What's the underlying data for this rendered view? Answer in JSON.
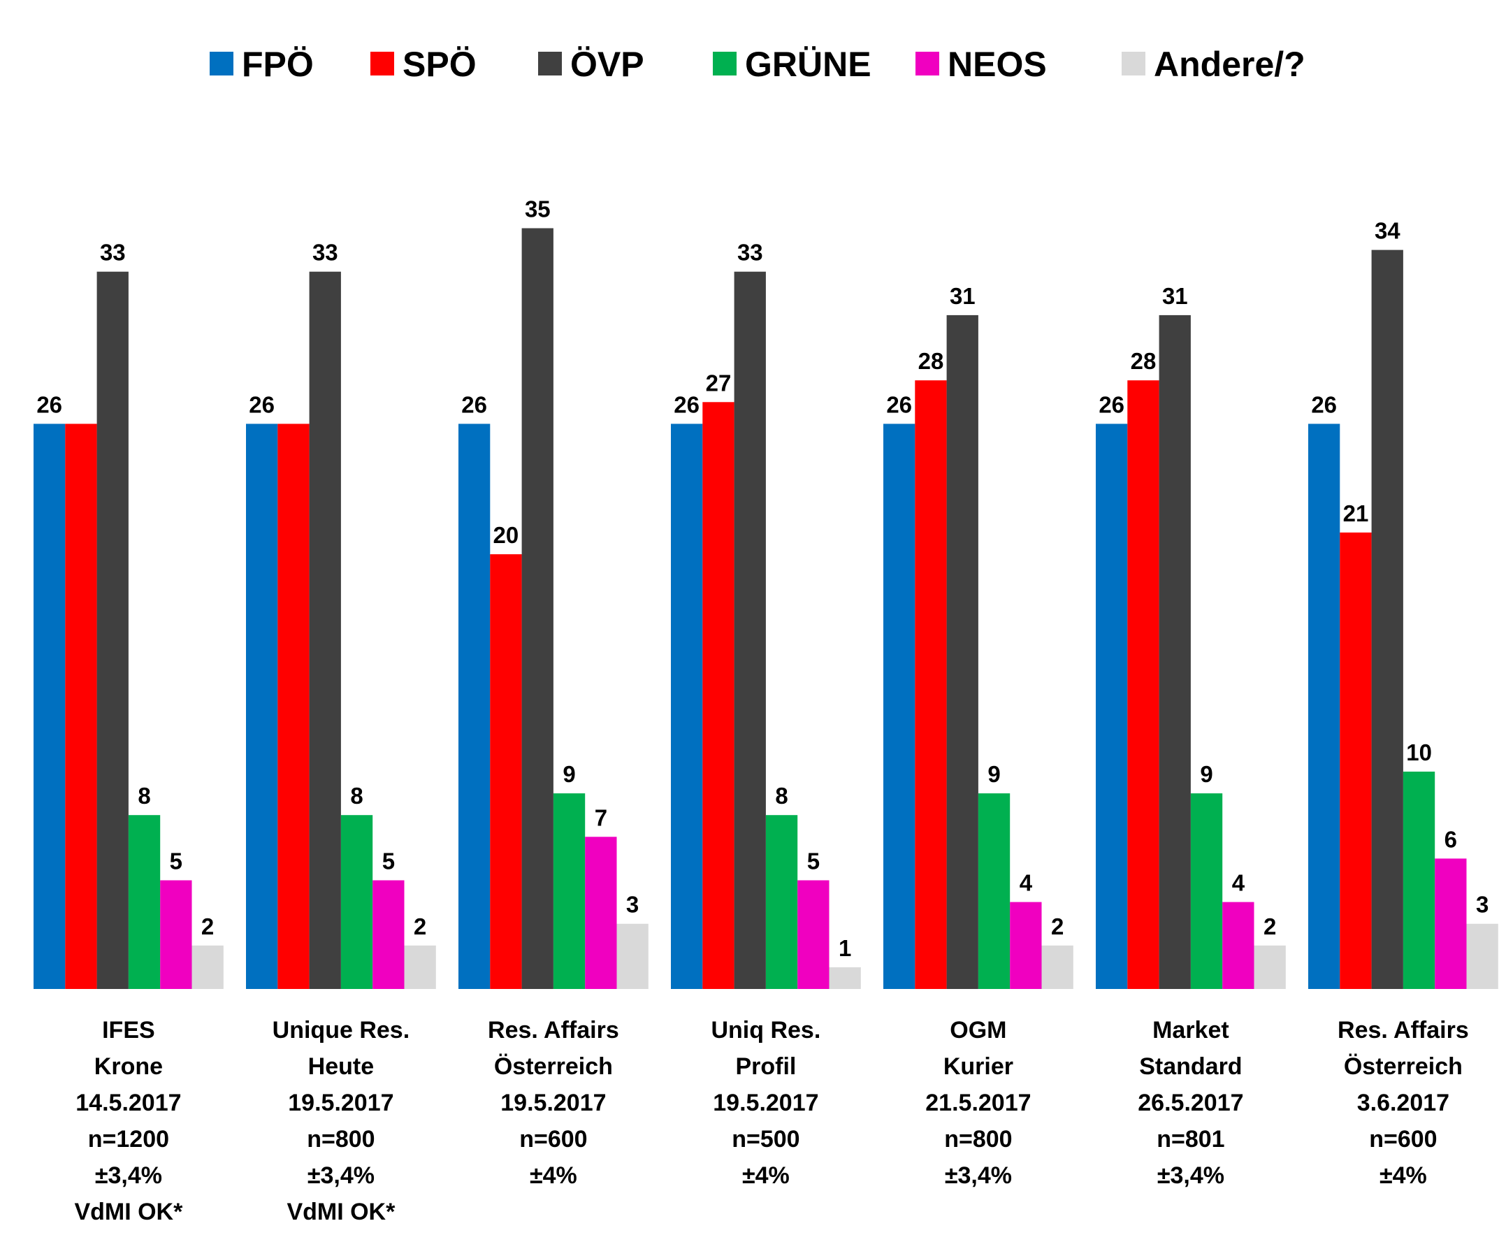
{
  "chart_data": {
    "type": "bar",
    "title": "",
    "xlabel": "",
    "ylabel": "",
    "ylim": [
      0,
      35
    ],
    "grid": false,
    "legend_position": "top",
    "categories": [
      [
        "IFES",
        "Krone",
        "14.5.2017",
        "n=1200",
        "±3,4%",
        "VdMI OK*"
      ],
      [
        "Unique Res.",
        "Heute",
        "19.5.2017",
        "n=800",
        "±3,4%",
        "VdMI OK*"
      ],
      [
        "Res. Affairs",
        "Österreich",
        "19.5.2017",
        "n=600",
        "±4%"
      ],
      [
        "Uniq Res.",
        "Profil",
        "19.5.2017",
        "n=500",
        "±4%"
      ],
      [
        "OGM",
        "Kurier",
        "21.5.2017",
        "n=800",
        "±3,4%"
      ],
      [
        "Market",
        "Standard",
        "26.5.2017",
        "n=801",
        "±3,4%"
      ],
      [
        "Res. Affairs",
        "Österreich",
        "3.6.2017",
        "n=600",
        "±4%"
      ]
    ],
    "series": [
      {
        "name": "FPÖ",
        "color": "#0070C0",
        "values": [
          26,
          26,
          26,
          26,
          26,
          26,
          26
        ]
      },
      {
        "name": "SPÖ",
        "color": "#FF0000",
        "values": [
          26,
          26,
          20,
          27,
          28,
          28,
          21
        ]
      },
      {
        "name": "ÖVP",
        "color": "#404040",
        "values": [
          33,
          33,
          35,
          33,
          31,
          31,
          34
        ]
      },
      {
        "name": "GRÜNE",
        "color": "#00B050",
        "values": [
          8,
          8,
          9,
          8,
          9,
          9,
          10
        ]
      },
      {
        "name": "NEOS",
        "color": "#F000C0",
        "values": [
          5,
          5,
          7,
          5,
          4,
          4,
          6
        ]
      },
      {
        "name": "Andere/?",
        "color": "#D9D9D9",
        "values": [
          2,
          2,
          3,
          1,
          2,
          2,
          3
        ]
      }
    ],
    "data_labels": [
      [
        "26",
        "",
        "33",
        "8",
        "5",
        "2"
      ],
      [
        "26",
        "",
        "33",
        "8",
        "5",
        "2"
      ],
      [
        "26",
        "20",
        "35",
        "9",
        "7",
        "3"
      ],
      [
        "26",
        "27",
        "33",
        "8",
        "5",
        "1"
      ],
      [
        "26",
        "28",
        "31",
        "9",
        "4",
        "2"
      ],
      [
        "26",
        "28",
        "31",
        "9",
        "4",
        "2"
      ],
      [
        "26",
        "21",
        "34",
        "10",
        "6",
        "3"
      ]
    ]
  }
}
